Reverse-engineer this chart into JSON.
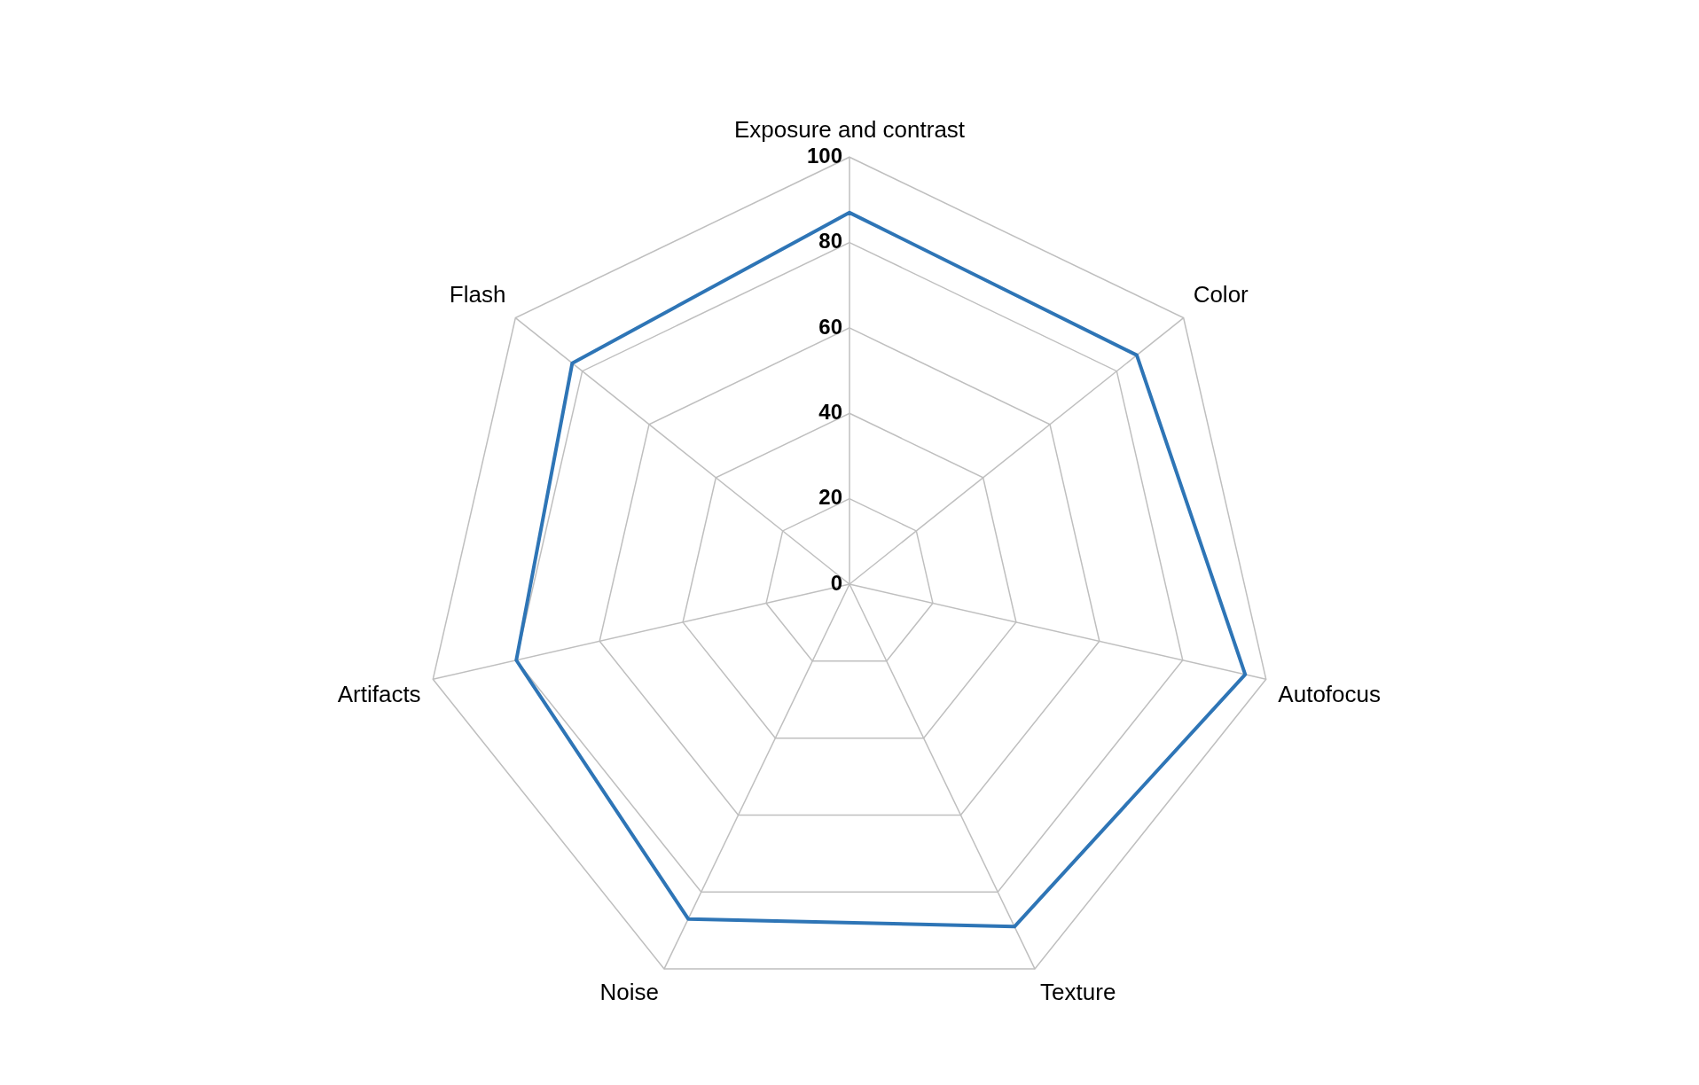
{
  "chart_data": {
    "type": "radar",
    "categories": [
      "Exposure and contrast",
      "Color",
      "Autofocus",
      "Texture",
      "Noise",
      "Artifacts",
      "Flash"
    ],
    "series": [
      {
        "color": "#2e75b6",
        "values": [
          87,
          86,
          95,
          89,
          87,
          80,
          83
        ]
      }
    ],
    "ylim": [
      0,
      100
    ],
    "yticks": [
      0,
      20,
      40,
      60,
      80,
      100
    ],
    "grid": true,
    "marker": "none",
    "line_style": "solid"
  }
}
